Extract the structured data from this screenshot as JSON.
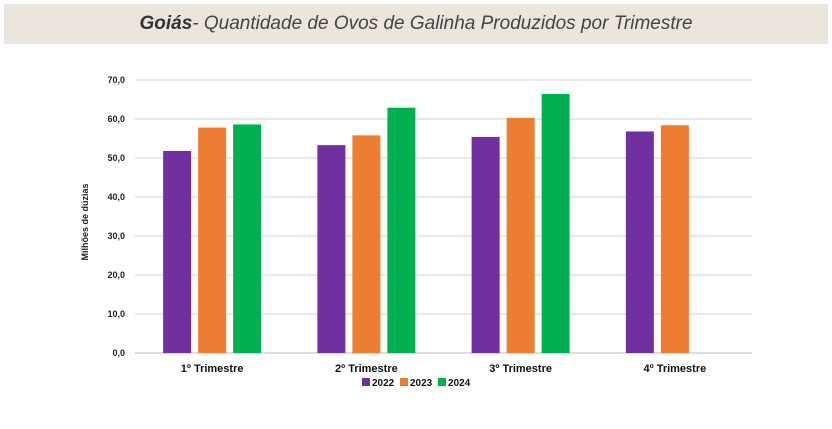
{
  "title": {
    "bold": "Goiás",
    "rest": " - Quantidade de Ovos de Galinha Produzidos por Trimestre"
  },
  "chart_data": {
    "type": "bar",
    "title": "Goiás - Quantidade de Ovos de Galinha Produzidos por Trimestre",
    "xlabel": "",
    "ylabel": "Milhões de dúzias",
    "ylim": [
      0,
      70
    ],
    "yticks": [
      "0,0",
      "10,0",
      "20,0",
      "30,0",
      "40,0",
      "50,0",
      "60,0",
      "70,0"
    ],
    "categories": [
      "1º Trimestre",
      "2º Trimestre",
      "3º Trimestre",
      "4º Trimestre"
    ],
    "series": [
      {
        "name": "2022",
        "color": "#7030a0",
        "values": [
          51.8,
          53.3,
          55.4,
          56.8
        ]
      },
      {
        "name": "2023",
        "color": "#ed7d31",
        "values": [
          57.8,
          55.8,
          60.3,
          58.4
        ]
      },
      {
        "name": "2024",
        "color": "#00b050",
        "values": [
          58.6,
          62.9,
          66.4,
          null
        ]
      }
    ],
    "grid": true,
    "legend": "bottom-center"
  }
}
